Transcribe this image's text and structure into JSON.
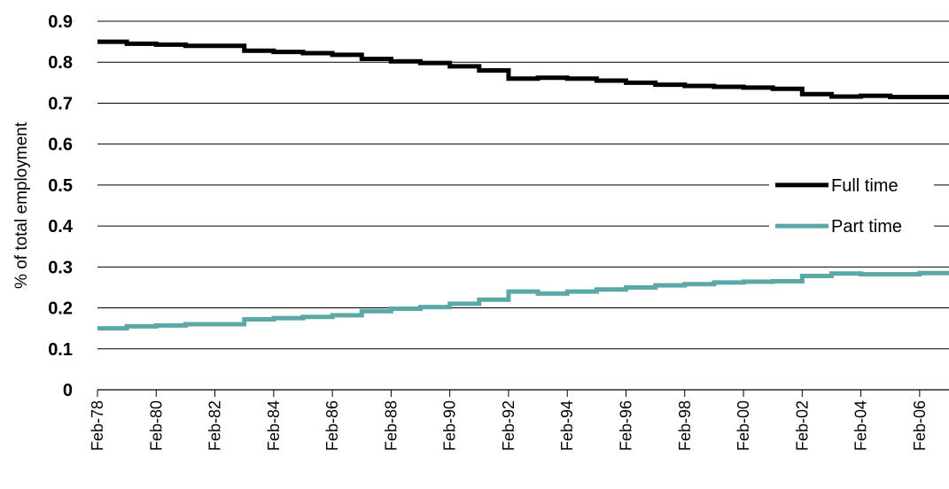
{
  "chart_data": {
    "type": "line",
    "title": "",
    "xlabel": "",
    "ylabel": "% of total employment",
    "ylim": [
      0,
      0.9
    ],
    "yticks": [
      "0",
      "0.1",
      "0.2",
      "0.3",
      "0.4",
      "0.5",
      "0.6",
      "0.7",
      "0.8",
      "0.9"
    ],
    "xlim": [
      "Feb-78",
      "Feb-07"
    ],
    "xticks": [
      "Feb-78",
      "Feb-80",
      "Feb-82",
      "Feb-84",
      "Feb-86",
      "Feb-88",
      "Feb-90",
      "Feb-92",
      "Feb-94",
      "Feb-96",
      "Feb-98",
      "Feb-00",
      "Feb-02",
      "Feb-04",
      "Feb-06"
    ],
    "grid": "horizontal",
    "legend_position": "right-middle",
    "series": [
      {
        "name": "Full time",
        "color": "#000000",
        "x": [
          "Feb-78",
          "Feb-79",
          "Feb-80",
          "Feb-81",
          "Feb-82",
          "Feb-83",
          "Feb-84",
          "Feb-85",
          "Feb-86",
          "Feb-87",
          "Feb-88",
          "Feb-89",
          "Feb-90",
          "Feb-91",
          "Feb-92",
          "Feb-93",
          "Feb-94",
          "Feb-95",
          "Feb-96",
          "Feb-97",
          "Feb-98",
          "Feb-99",
          "Feb-00",
          "Feb-01",
          "Feb-02",
          "Feb-03",
          "Feb-04",
          "Feb-05",
          "Feb-06",
          "Feb-07"
        ],
        "values": [
          0.85,
          0.845,
          0.843,
          0.84,
          0.84,
          0.828,
          0.825,
          0.822,
          0.818,
          0.808,
          0.802,
          0.798,
          0.79,
          0.78,
          0.76,
          0.762,
          0.76,
          0.755,
          0.75,
          0.745,
          0.742,
          0.74,
          0.738,
          0.735,
          0.722,
          0.716,
          0.718,
          0.715,
          0.715,
          0.715
        ]
      },
      {
        "name": "Part time",
        "color": "#5ba8a6",
        "x": [
          "Feb-78",
          "Feb-79",
          "Feb-80",
          "Feb-81",
          "Feb-82",
          "Feb-83",
          "Feb-84",
          "Feb-85",
          "Feb-86",
          "Feb-87",
          "Feb-88",
          "Feb-89",
          "Feb-90",
          "Feb-91",
          "Feb-92",
          "Feb-93",
          "Feb-94",
          "Feb-95",
          "Feb-96",
          "Feb-97",
          "Feb-98",
          "Feb-99",
          "Feb-00",
          "Feb-01",
          "Feb-02",
          "Feb-03",
          "Feb-04",
          "Feb-05",
          "Feb-06",
          "Feb-07"
        ],
        "values": [
          0.15,
          0.155,
          0.157,
          0.16,
          0.16,
          0.172,
          0.175,
          0.178,
          0.182,
          0.192,
          0.198,
          0.202,
          0.21,
          0.22,
          0.24,
          0.235,
          0.24,
          0.245,
          0.25,
          0.255,
          0.258,
          0.262,
          0.264,
          0.265,
          0.278,
          0.284,
          0.282,
          0.282,
          0.285,
          0.282
        ]
      }
    ]
  }
}
